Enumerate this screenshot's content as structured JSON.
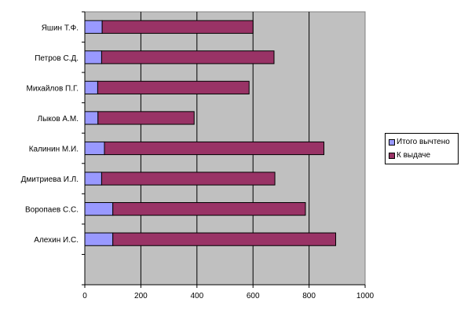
{
  "chart_data": {
    "type": "bar",
    "orientation": "horizontal",
    "stacked": true,
    "categories": [
      "Яшин Т.Ф.",
      "Петров С.Д.",
      "Михайлов П.Г.",
      "Лыков А.М.",
      "Калинин М.И.",
      "Дмитриева И.Л.",
      "Воропаев С.С.",
      "Алехин И.С."
    ],
    "series": [
      {
        "name": "Итого вычтено",
        "color": "#9999ff",
        "values": [
          62,
          60,
          46,
          47,
          70,
          60,
          100,
          100
        ]
      },
      {
        "name": "К выдаче",
        "color": "#993366",
        "values": [
          538,
          615,
          540,
          343,
          783,
          618,
          687,
          795
        ]
      }
    ],
    "xlim": [
      0,
      1000
    ],
    "x_ticks": [
      "0",
      "200",
      "400",
      "600",
      "800",
      "1000"
    ],
    "grid": true,
    "plot_background": "#c0c0c0",
    "legend": "right",
    "title": "",
    "xlabel": "",
    "ylabel": ""
  }
}
